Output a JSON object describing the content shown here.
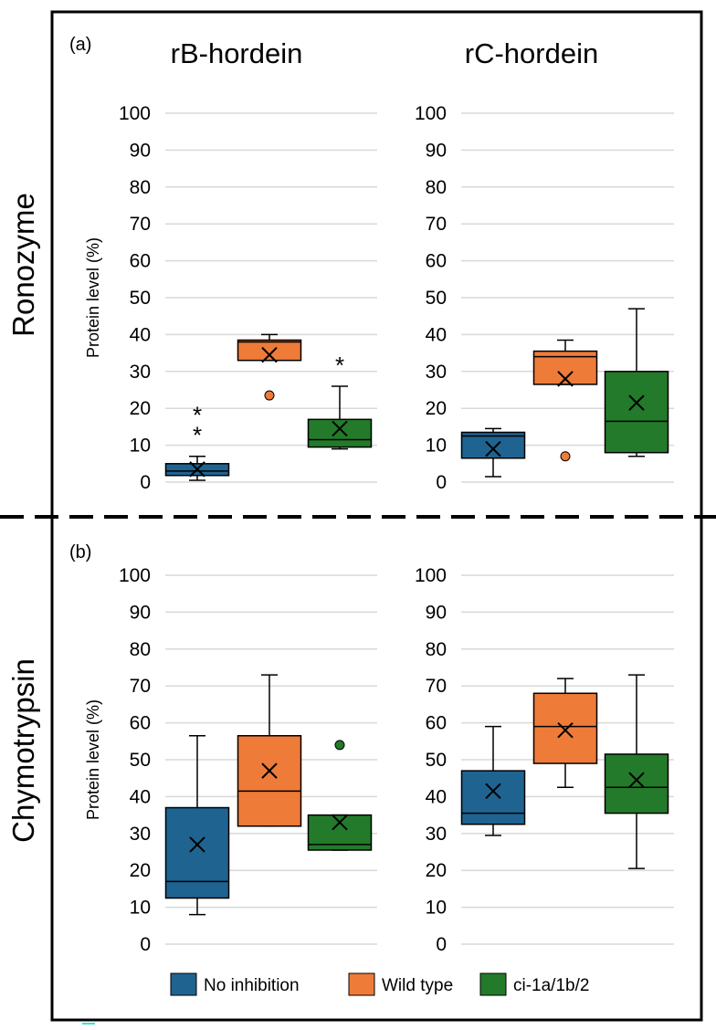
{
  "column_titles": [
    "rB-hordein",
    "rC-hordein"
  ],
  "row_labels": [
    "Ronozyme",
    "Chymotrypsin"
  ],
  "panel_labels": [
    "(a)",
    "(b)"
  ],
  "legend": [
    {
      "label": "No inhibition",
      "color": "#1f6391"
    },
    {
      "label": "Wild type",
      "color": "#ee7b38"
    },
    {
      "label": "ci-1a/1b/2",
      "color": "#237a2a"
    }
  ],
  "colors": {
    "whisker": "#000000",
    "grid": "#d9d9d9",
    "frame": "#000000",
    "accent": "#40e0d0"
  },
  "chart_data": [
    {
      "type": "box",
      "id": "ronozyme-rB",
      "ylabel": "Protein level (%)",
      "ylim": [
        0,
        100
      ],
      "yticks": [
        0,
        10,
        20,
        30,
        40,
        50,
        60,
        70,
        80,
        90,
        100
      ],
      "grid": true,
      "series": [
        {
          "name": "No inhibition",
          "min": 0.5,
          "q1": 1.8,
          "median": 3.0,
          "q3": 5.0,
          "max": 7.0,
          "mean": 3.5,
          "outliers": []
        },
        {
          "name": "Wild type",
          "min": 33,
          "q1": 33,
          "median": 38,
          "q3": 38.5,
          "max": 40,
          "mean": 34.5,
          "outliers": [
            23.5
          ]
        },
        {
          "name": "ci-1a/1b/2",
          "min": 9,
          "q1": 9.5,
          "median": 11.5,
          "q3": 17,
          "max": 26,
          "mean": 14.5,
          "outliers": []
        }
      ],
      "annotations": [
        {
          "series": "No inhibition",
          "text": "**"
        },
        {
          "series": "ci-1a/1b/2",
          "text": "*"
        }
      ]
    },
    {
      "type": "box",
      "id": "ronozyme-rC",
      "ylabel": "",
      "ylim": [
        0,
        100
      ],
      "yticks": [
        0,
        10,
        20,
        30,
        40,
        50,
        60,
        70,
        80,
        90,
        100
      ],
      "grid": true,
      "series": [
        {
          "name": "No inhibition",
          "min": 1.5,
          "q1": 6.5,
          "median": 12.5,
          "q3": 13.5,
          "max": 14.5,
          "mean": 9.0,
          "outliers": []
        },
        {
          "name": "Wild type",
          "min": 26.5,
          "q1": 26.5,
          "median": 34,
          "q3": 35.5,
          "max": 38.5,
          "mean": 28.0,
          "outliers": [
            7
          ]
        },
        {
          "name": "ci-1a/1b/2",
          "min": 7,
          "q1": 8,
          "median": 16.5,
          "q3": 30,
          "max": 47,
          "mean": 21.5,
          "outliers": []
        }
      ],
      "annotations": []
    },
    {
      "type": "box",
      "id": "chymotrypsin-rB",
      "ylabel": "Protein level (%)",
      "ylim": [
        0,
        100
      ],
      "yticks": [
        0,
        10,
        20,
        30,
        40,
        50,
        60,
        70,
        80,
        90,
        100
      ],
      "grid": true,
      "series": [
        {
          "name": "No inhibition",
          "min": 8,
          "q1": 12.5,
          "median": 17,
          "q3": 37,
          "max": 56.5,
          "mean": 27,
          "outliers": []
        },
        {
          "name": "Wild type",
          "min": 32,
          "q1": 32,
          "median": 41.5,
          "q3": 56.5,
          "max": 73,
          "mean": 47,
          "outliers": []
        },
        {
          "name": "ci-1a/1b/2",
          "min": 25.5,
          "q1": 25.5,
          "median": 27,
          "q3": 35,
          "max": 35,
          "mean": 33,
          "outliers": [
            54
          ]
        }
      ],
      "annotations": []
    },
    {
      "type": "box",
      "id": "chymotrypsin-rC",
      "ylabel": "",
      "ylim": [
        0,
        100
      ],
      "yticks": [
        0,
        10,
        20,
        30,
        40,
        50,
        60,
        70,
        80,
        90,
        100
      ],
      "grid": true,
      "series": [
        {
          "name": "No inhibition",
          "min": 29.5,
          "q1": 32.5,
          "median": 35.5,
          "q3": 47,
          "max": 59,
          "mean": 41.5,
          "outliers": []
        },
        {
          "name": "Wild type",
          "min": 42.5,
          "q1": 49,
          "median": 59,
          "q3": 68,
          "max": 72,
          "mean": 58,
          "outliers": []
        },
        {
          "name": "ci-1a/1b/2",
          "min": 20.5,
          "q1": 35.5,
          "median": 42.5,
          "q3": 51.5,
          "max": 73,
          "mean": 44.5,
          "outliers": []
        }
      ],
      "annotations": []
    }
  ]
}
